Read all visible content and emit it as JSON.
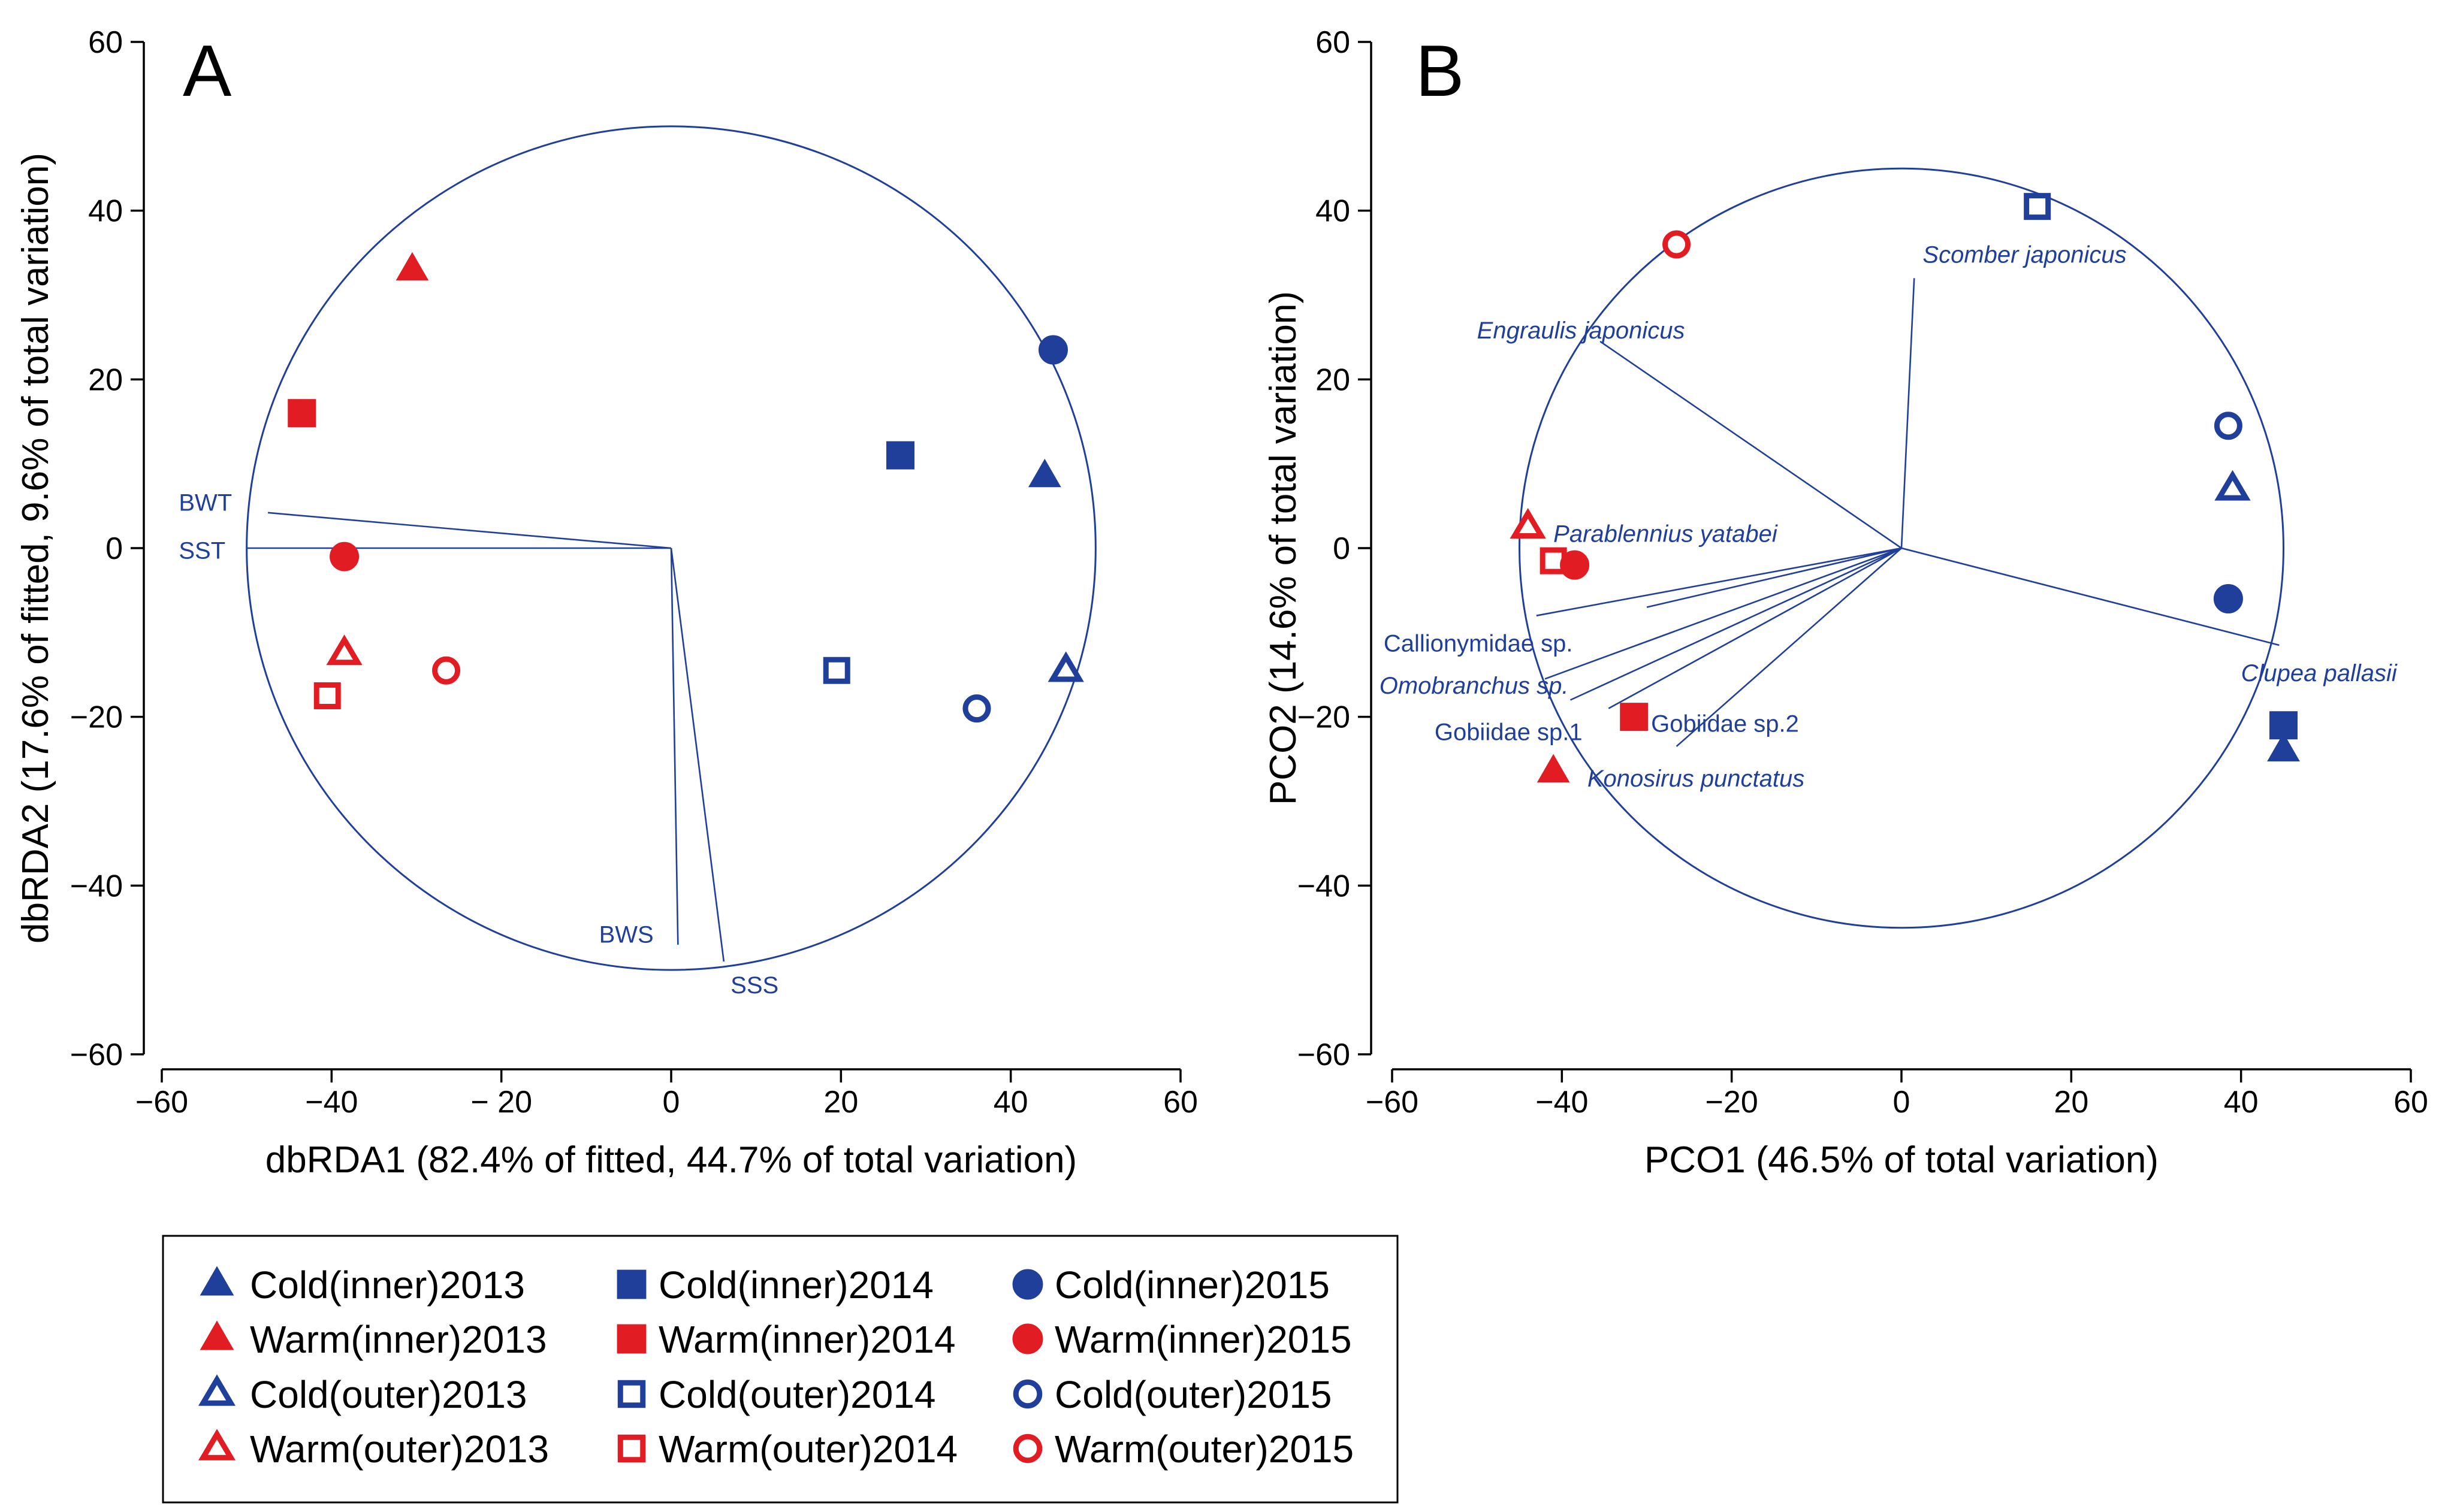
{
  "colors": {
    "cold": "#1f3f9a",
    "warm": "#e21c23",
    "axis": "#000000"
  },
  "chart_data": [
    {
      "type": "scatter",
      "panel": "A",
      "title": "A",
      "xlabel": "dbRDA1 (82.4% of fitted, 44.7% of total variation)",
      "ylabel": "dbRDA2 (17.6% of fitted, 9.6% of total variation)",
      "xlim": [
        -60,
        60
      ],
      "ylim": [
        -60,
        60
      ],
      "xticks": [
        -60,
        -40,
        -20,
        0,
        20,
        40,
        60
      ],
      "xtick_labels": [
        "−60",
        "−40",
        "− 20",
        "0",
        "20",
        "40",
        "60"
      ],
      "yticks": [
        -60,
        -40,
        -20,
        0,
        20,
        40,
        60
      ],
      "ytick_labels": [
        "−60",
        "−40",
        "−20",
        "0",
        "20",
        "40",
        "60"
      ],
      "circle": {
        "center": [
          0,
          0
        ],
        "radius": 50
      },
      "points": [
        {
          "series": "Cold(inner)2013",
          "x": 44,
          "y": 8.5
        },
        {
          "series": "Warm(inner)2013",
          "x": -30.5,
          "y": 33
        },
        {
          "series": "Cold(outer)2013",
          "x": 46.5,
          "y": -14.5
        },
        {
          "series": "Warm(outer)2013",
          "x": -38.5,
          "y": -12.5
        },
        {
          "series": "Cold(inner)2014",
          "x": 27,
          "y": 11
        },
        {
          "series": "Warm(inner)2014",
          "x": -43.5,
          "y": 16
        },
        {
          "series": "Cold(outer)2014",
          "x": 19.5,
          "y": -14.5
        },
        {
          "series": "Warm(outer)2014",
          "x": -40.5,
          "y": -17.5
        },
        {
          "series": "Cold(inner)2015",
          "x": 45,
          "y": 23.5
        },
        {
          "series": "Warm(inner)2015",
          "x": -38.5,
          "y": -1
        },
        {
          "series": "Cold(outer)2015",
          "x": 36,
          "y": -19
        },
        {
          "series": "Warm(outer)2015",
          "x": -26.5,
          "y": -14.5
        }
      ],
      "vectors": [
        {
          "label": "BWT",
          "x": -47.5,
          "y": 4.2,
          "label_x": -58,
          "label_y": 5.2,
          "italic": false
        },
        {
          "label": "SST",
          "x": -50,
          "y": 0,
          "label_x": -58,
          "label_y": -0.5,
          "italic": false
        },
        {
          "label": "BWS",
          "x": 0.8,
          "y": -47,
          "label_x": -8.5,
          "label_y": -46,
          "italic": false
        },
        {
          "label": "SSS",
          "x": 6.2,
          "y": -49,
          "label_x": 7,
          "label_y": -52,
          "italic": false
        }
      ]
    },
    {
      "type": "scatter",
      "panel": "B",
      "title": "B",
      "xlabel": "PCO1 (46.5% of total variation)",
      "ylabel": "PCO2 (14.6% of total variation)",
      "xlim": [
        -60,
        60
      ],
      "ylim": [
        -60,
        60
      ],
      "xticks": [
        -60,
        -40,
        -20,
        0,
        20,
        40,
        60
      ],
      "xtick_labels": [
        "−60",
        "−40",
        "−20",
        "0",
        "20",
        "40",
        "60"
      ],
      "yticks": [
        -60,
        -40,
        -20,
        0,
        20,
        40,
        60
      ],
      "ytick_labels": [
        "−60",
        "−40",
        "−20",
        "0",
        "20",
        "40",
        "60"
      ],
      "circle": {
        "center": [
          0,
          0
        ],
        "radius": 45
      },
      "points": [
        {
          "series": "Cold(inner)2013",
          "x": 45,
          "y": -24
        },
        {
          "series": "Warm(inner)2013",
          "x": -41,
          "y": -26.5
        },
        {
          "series": "Cold(outer)2013",
          "x": 39,
          "y": 7
        },
        {
          "series": "Warm(outer)2013",
          "x": -44,
          "y": 2.5
        },
        {
          "series": "Cold(inner)2014",
          "x": 45,
          "y": -21
        },
        {
          "series": "Warm(inner)2014",
          "x": -31.5,
          "y": -20
        },
        {
          "series": "Cold(outer)2014",
          "x": 16,
          "y": 40.5
        },
        {
          "series": "Warm(outer)2014",
          "x": -41,
          "y": -1.5
        },
        {
          "series": "Cold(inner)2015",
          "x": 38.5,
          "y": -6
        },
        {
          "series": "Warm(inner)2015",
          "x": -38.5,
          "y": -2
        },
        {
          "series": "Cold(outer)2015",
          "x": 38.5,
          "y": 14.5
        },
        {
          "series": "Warm(outer)2015",
          "x": -26.5,
          "y": 36
        }
      ],
      "vectors": [
        {
          "label": "Scomber japonicus",
          "x": 1.5,
          "y": 32,
          "label_x": 2.5,
          "label_y": 34.6,
          "italic": true
        },
        {
          "label": "Engraulis japonicus",
          "x": -35.5,
          "y": 24.5,
          "label_x": -50,
          "label_y": 25.6,
          "italic": true
        },
        {
          "label": "Parablennius yatabei",
          "x": -30,
          "y": -7,
          "label_x": -41,
          "label_y": 1.5,
          "italic": true
        },
        {
          "label": "Callionymidae sp.",
          "x": -43,
          "y": -8,
          "label_x": -61,
          "label_y": -11.5,
          "italic": false
        },
        {
          "label": "Omobranchus sp.",
          "x": -42,
          "y": -15.5,
          "label_x": -61.5,
          "label_y": -16.5,
          "italic": true
        },
        {
          "label": "Gobiidae sp.1",
          "x": -39,
          "y": -18,
          "label_x": -55,
          "label_y": -22,
          "italic": false
        },
        {
          "label": "Gobiidae sp.2",
          "x": -34.5,
          "y": -19,
          "label_x": -29.5,
          "label_y": -21,
          "italic": false
        },
        {
          "label": "Konosirus punctatus",
          "x": -26.5,
          "y": -23.5,
          "label_x": -37,
          "label_y": -27.5,
          "italic": true
        },
        {
          "label": "Clupea pallasii",
          "x": 44.5,
          "y": -11.5,
          "label_x": 40,
          "label_y": -15,
          "italic": true
        }
      ]
    }
  ],
  "legend": {
    "columns": [
      [
        {
          "label": "Cold(inner)2013",
          "shape": "triangle",
          "fill": true,
          "group": "cold"
        },
        {
          "label": "Warm(inner)2013",
          "shape": "triangle",
          "fill": true,
          "group": "warm"
        },
        {
          "label": "Cold(outer)2013",
          "shape": "triangle",
          "fill": false,
          "group": "cold"
        },
        {
          "label": "Warm(outer)2013",
          "shape": "triangle",
          "fill": false,
          "group": "warm"
        }
      ],
      [
        {
          "label": "Cold(inner)2014",
          "shape": "square",
          "fill": true,
          "group": "cold"
        },
        {
          "label": "Warm(inner)2014",
          "shape": "square",
          "fill": true,
          "group": "warm"
        },
        {
          "label": "Cold(outer)2014",
          "shape": "square",
          "fill": false,
          "group": "cold"
        },
        {
          "label": "Warm(outer)2014",
          "shape": "square",
          "fill": false,
          "group": "warm"
        }
      ],
      [
        {
          "label": "Cold(inner)2015",
          "shape": "circle",
          "fill": true,
          "group": "cold"
        },
        {
          "label": "Warm(inner)2015",
          "shape": "circle",
          "fill": true,
          "group": "warm"
        },
        {
          "label": "Cold(outer)2015",
          "shape": "circle",
          "fill": false,
          "group": "cold"
        },
        {
          "label": "Warm(outer)2015",
          "shape": "circle",
          "fill": false,
          "group": "warm"
        }
      ]
    ]
  }
}
